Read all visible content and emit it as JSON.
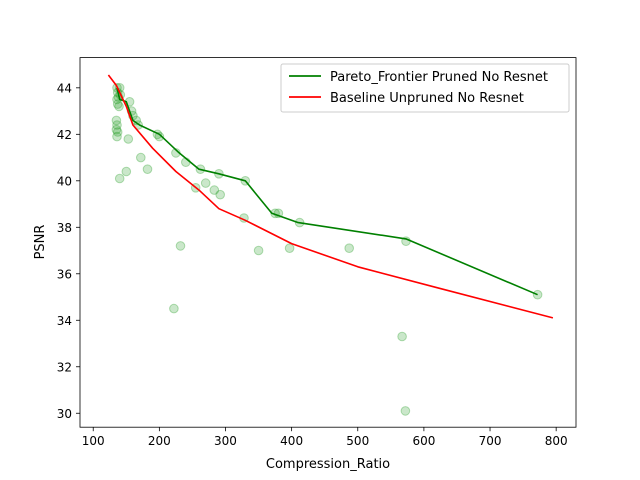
{
  "chart_data": {
    "type": "scatter",
    "title": "",
    "xlabel": "Compression_Ratio",
    "ylabel": "PSNR",
    "xlim": [
      80,
      830
    ],
    "ylim": [
      29.4,
      45.3
    ],
    "xticks": [
      100,
      200,
      300,
      400,
      500,
      600,
      700,
      800
    ],
    "yticks": [
      30,
      32,
      34,
      36,
      38,
      40,
      42,
      44
    ],
    "grid": false,
    "legend_position": "top-right",
    "scatter": {
      "color": "#2ca02c",
      "points": [
        [
          136,
          44.0
        ],
        [
          137,
          43.8
        ],
        [
          138,
          43.6
        ],
        [
          136,
          43.5
        ],
        [
          137,
          43.3
        ],
        [
          139,
          43.2
        ],
        [
          140,
          44.0
        ],
        [
          141,
          43.7
        ],
        [
          135,
          42.6
        ],
        [
          136,
          42.4
        ],
        [
          135,
          42.2
        ],
        [
          137,
          42.1
        ],
        [
          136,
          41.9
        ],
        [
          140,
          40.1
        ],
        [
          150,
          40.4
        ],
        [
          153,
          41.8
        ],
        [
          155,
          43.4
        ],
        [
          158,
          43.0
        ],
        [
          160,
          42.8
        ],
        [
          165,
          42.6
        ],
        [
          168,
          42.4
        ],
        [
          172,
          41.0
        ],
        [
          182,
          40.5
        ],
        [
          197,
          42.0
        ],
        [
          200,
          41.9
        ],
        [
          222,
          34.5
        ],
        [
          225,
          41.2
        ],
        [
          232,
          37.2
        ],
        [
          240,
          40.8
        ],
        [
          255,
          39.7
        ],
        [
          262,
          40.5
        ],
        [
          270,
          39.9
        ],
        [
          283,
          39.6
        ],
        [
          290,
          40.3
        ],
        [
          292,
          39.4
        ],
        [
          328,
          38.4
        ],
        [
          330,
          40.0
        ],
        [
          350,
          37.0
        ],
        [
          375,
          38.6
        ],
        [
          380,
          38.6
        ],
        [
          397,
          37.1
        ],
        [
          412,
          38.2
        ],
        [
          487,
          37.1
        ],
        [
          567,
          33.3
        ],
        [
          573,
          37.4
        ],
        [
          572,
          30.1
        ],
        [
          772,
          35.1
        ]
      ]
    },
    "series": [
      {
        "name": "Pareto_Frontier Pruned No Resnet",
        "color": "#008000",
        "x": [
          136,
          140,
          150,
          160,
          170,
          200,
          230,
          260,
          290,
          330,
          370,
          410,
          573,
          772
        ],
        "y": [
          44.0,
          43.5,
          43.4,
          42.6,
          42.4,
          42.0,
          41.2,
          40.5,
          40.3,
          40.0,
          38.6,
          38.2,
          37.5,
          35.1
        ]
      },
      {
        "name": "Baseline Unpruned No Resnet",
        "color": "#ff0000",
        "x": [
          123,
          135,
          150,
          160,
          190,
          225,
          260,
          290,
          330,
          400,
          500,
          620,
          795
        ],
        "y": [
          44.55,
          44.1,
          43.2,
          42.4,
          41.4,
          40.4,
          39.6,
          38.8,
          38.3,
          37.3,
          36.3,
          35.4,
          34.1
        ]
      }
    ]
  }
}
